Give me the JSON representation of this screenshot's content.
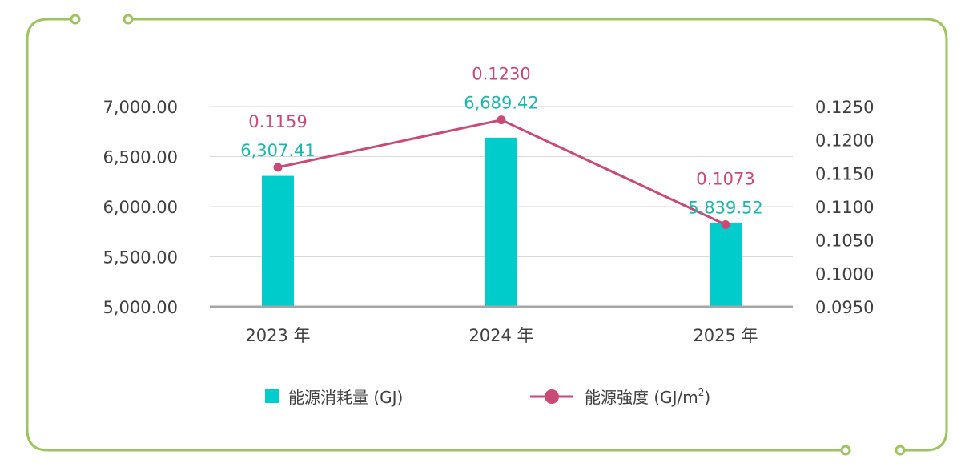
{
  "colors": {
    "frame": "#9dc45f",
    "bar": "#00cccc",
    "bar_label": "#1fb5ad",
    "line": "#c94a74",
    "grid": "#d9d9d9",
    "axis": "#a6a6a6",
    "text": "#404040"
  },
  "chart_data": {
    "type": "bar",
    "categories": [
      "2023 年",
      "2024 年",
      "2025 年"
    ],
    "series": [
      {
        "name": "能源消耗量 (GJ)",
        "type": "bar",
        "axis": "left",
        "values": [
          6307.41,
          6689.42,
          5839.52
        ],
        "labels": [
          "6,307.41",
          "6,689.42",
          "5,839.52"
        ]
      },
      {
        "name": "能源強度 (GJ/m²)",
        "name_main": "能源強度 (GJ/m",
        "name_sup": "2",
        "name_end": ")",
        "type": "line",
        "axis": "right",
        "values": [
          0.1159,
          0.123,
          0.1073
        ],
        "labels": [
          "0.1159",
          "0.1230",
          "0.1073"
        ]
      }
    ],
    "y_left": {
      "min": 5000,
      "max": 7000,
      "ticks": [
        5000,
        5500,
        6000,
        6500,
        7000
      ],
      "tick_labels": [
        "5,000.00",
        "5,500.00",
        "6,000.00",
        "6,500.00",
        "7,000.00"
      ]
    },
    "y_right": {
      "min": 0.095,
      "max": 0.125,
      "ticks": [
        0.095,
        0.1,
        0.105,
        0.11,
        0.115,
        0.12,
        0.125
      ],
      "tick_labels": [
        "0.0950",
        "0.1000",
        "0.1050",
        "0.1100",
        "0.1150",
        "0.1200",
        "0.1250"
      ]
    },
    "grid": true,
    "legend_position": "bottom"
  }
}
